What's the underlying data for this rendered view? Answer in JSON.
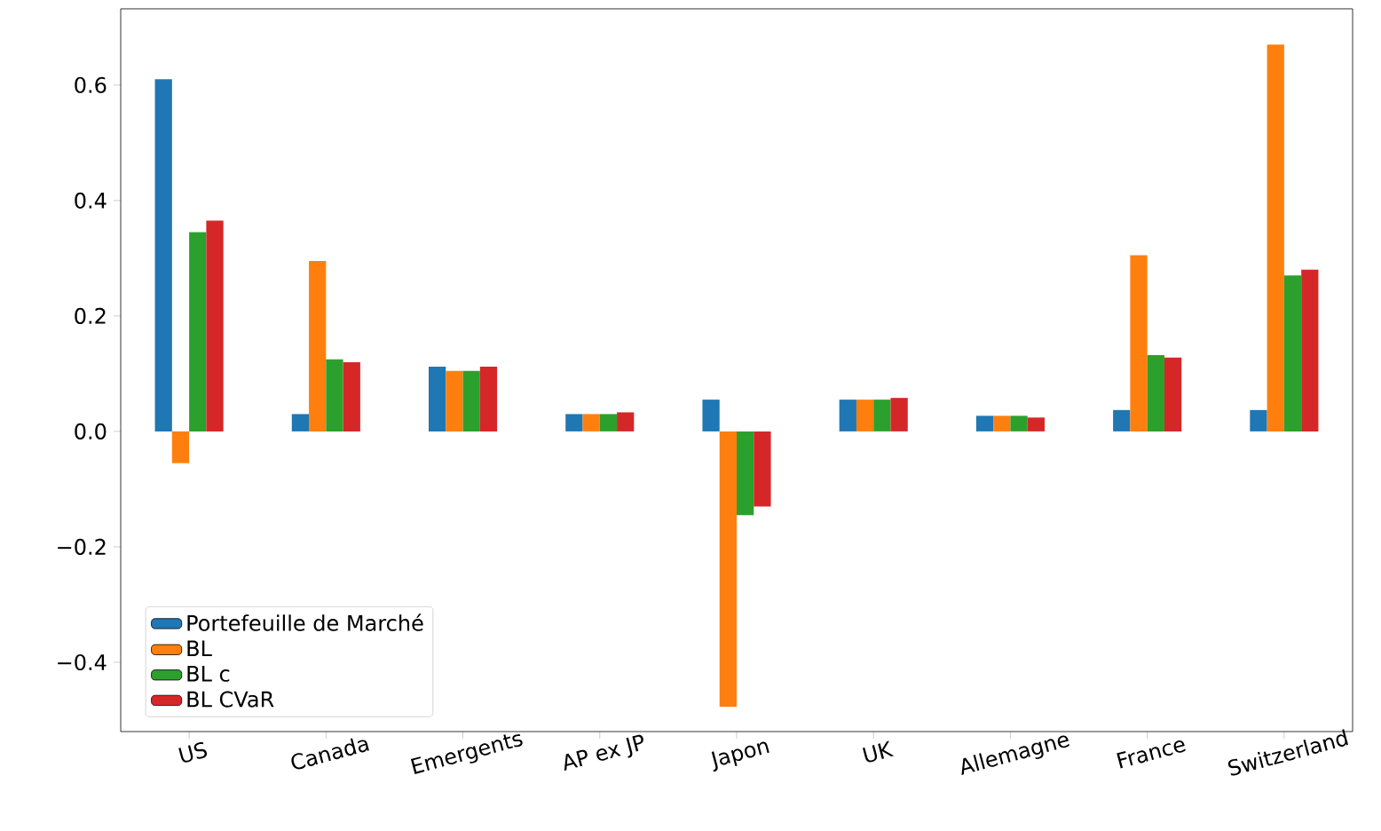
{
  "chart_data": {
    "type": "bar",
    "categories": [
      "US",
      "Canada",
      "Emergents",
      "AP ex JP",
      "Japon",
      "UK",
      "Allemagne",
      "France",
      "Switzerland"
    ],
    "series": [
      {
        "name": "Portefeuille de Marché",
        "color": "#1f77b4",
        "values": [
          0.61,
          0.03,
          0.112,
          0.03,
          0.055,
          0.055,
          0.027,
          0.037,
          0.037
        ]
      },
      {
        "name": "BL",
        "color": "#ff7f0e",
        "values": [
          -0.055,
          0.295,
          0.105,
          0.03,
          -0.477,
          0.055,
          0.027,
          0.305,
          0.67
        ]
      },
      {
        "name": "BL c",
        "color": "#2ca02c",
        "values": [
          0.345,
          0.125,
          0.105,
          0.03,
          -0.145,
          0.055,
          0.027,
          0.132,
          0.27
        ]
      },
      {
        "name": "BL CVaR",
        "color": "#d62728",
        "values": [
          0.365,
          0.12,
          0.112,
          0.033,
          -0.13,
          0.058,
          0.024,
          0.128,
          0.28
        ]
      }
    ],
    "ylim": [
      -0.52,
      0.732
    ],
    "yticks": [
      {
        "value": -0.4,
        "label": "−0.4"
      },
      {
        "value": -0.2,
        "label": "−0.2"
      },
      {
        "value": 0.0,
        "label": "0.0"
      },
      {
        "value": 0.2,
        "label": "0.2"
      },
      {
        "value": 0.4,
        "label": "0.4"
      },
      {
        "value": 0.6,
        "label": "0.6"
      }
    ],
    "legend": "bottom left"
  }
}
